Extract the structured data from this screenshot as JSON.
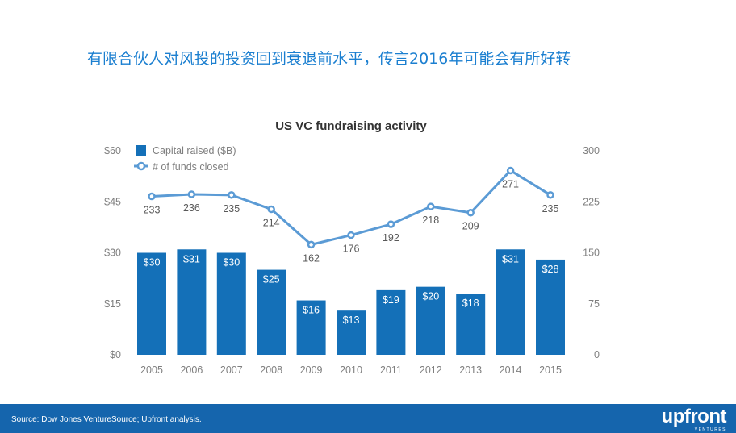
{
  "headline": "有限合伙人对风投的投资回到衰退前水平，传言2016年可能会有所好转",
  "footer": {
    "source": "Source: Dow Jones VentureSource; Upfront analysis.",
    "logo_text": "upfront",
    "logo_subtext": "VENTURES"
  },
  "colors": {
    "bar": "#1470b8",
    "line": "#5b9bd5",
    "headline": "#1b7fd0",
    "footer": "#1565ad",
    "axis_text": "#7f7f7f"
  },
  "chart_data": {
    "type": "bar",
    "title": "US VC fundraising activity",
    "categories": [
      "2005",
      "2006",
      "2007",
      "2008",
      "2009",
      "2010",
      "2011",
      "2012",
      "2013",
      "2014",
      "2015"
    ],
    "series": [
      {
        "name": "Capital raised ($B)",
        "type": "bar",
        "axis": "left",
        "values": [
          30,
          31,
          30,
          25,
          16,
          13,
          19,
          20,
          18,
          31,
          28
        ],
        "labels": [
          "$30",
          "$31",
          "$30",
          "$25",
          "$16",
          "$13",
          "$19",
          "$20",
          "$18",
          "$31",
          "$28"
        ]
      },
      {
        "name": "# of funds closed",
        "type": "line",
        "axis": "right",
        "values": [
          233,
          236,
          235,
          214,
          162,
          176,
          192,
          218,
          209,
          271,
          235
        ],
        "labels": [
          "233",
          "236",
          "235",
          "214",
          "162",
          "176",
          "192",
          "218",
          "209",
          "271",
          "235"
        ]
      }
    ],
    "y_left": {
      "ticks": [
        "$0",
        "$15",
        "$30",
        "$45",
        "$60"
      ],
      "ylim": [
        0,
        60
      ]
    },
    "y_right": {
      "ticks": [
        "0",
        "75",
        "150",
        "225",
        "300"
      ],
      "ylim": [
        0,
        300
      ]
    },
    "legend_position": "top-left",
    "grid": false
  }
}
